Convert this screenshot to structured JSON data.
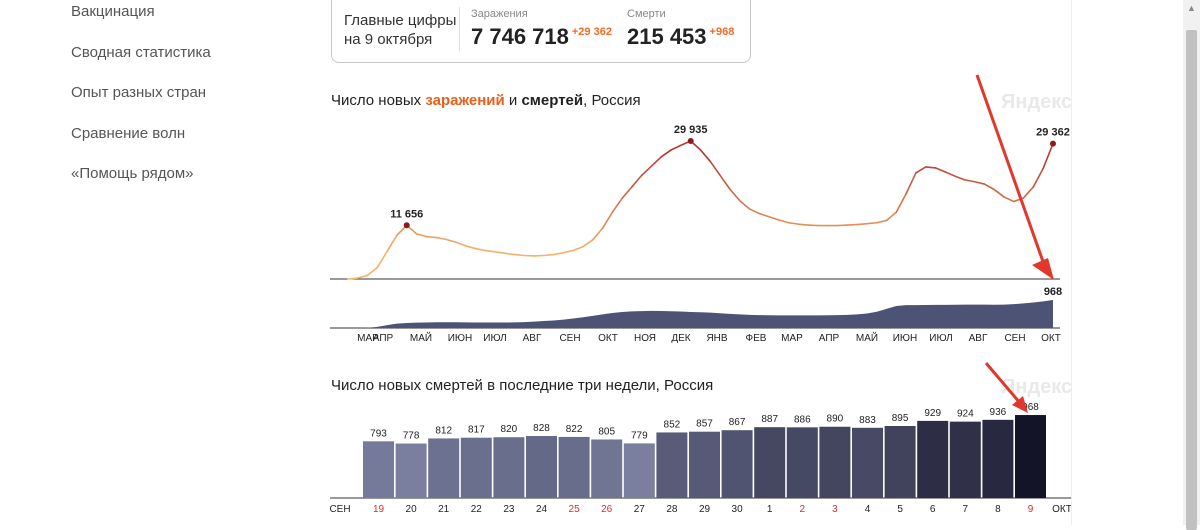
{
  "sidebar": {
    "items": [
      {
        "label": "Вакцинация"
      },
      {
        "label": "Сводная статистика"
      },
      {
        "label": "Опыт разных стран"
      },
      {
        "label": "Сравнение волн"
      },
      {
        "label": "«Помощь рядом»"
      }
    ]
  },
  "summary": {
    "label_line1": "Главные цифры",
    "label_line2": "на 9 октября",
    "infections_caption": "Заражения",
    "infections_total": "7 746 718",
    "infections_delta": "+29 362",
    "deaths_caption": "Смерти",
    "deaths_total": "215 453",
    "deaths_delta": "+968"
  },
  "chart1": {
    "title_prefix": "Число новых ",
    "title_infections": "заражений",
    "title_mid": " и ",
    "title_deaths": "смертей",
    "title_suffix": ", Россия",
    "watermark": "Яндекс"
  },
  "chart2": {
    "title": "Число новых смертей в последние три недели, Россия",
    "watermark": "Яндекс"
  },
  "colors": {
    "infections_low": "#f2b36a",
    "infections_high": "#b5312c",
    "deaths_area": "#4d5375",
    "highlight_red": "#d6302a",
    "annotation_arrow": "#e0382c"
  },
  "chart_data": [
    {
      "type": "line",
      "series": [
        {
          "name": "заражений",
          "values": [
            0,
            200,
            800,
            2500,
            6000,
            9500,
            11656,
            9800,
            9200,
            9000,
            8600,
            8000,
            7200,
            6600,
            6200,
            5900,
            5600,
            5300,
            5100,
            5000,
            5100,
            5300,
            5700,
            6200,
            7000,
            8500,
            11000,
            14500,
            17500,
            20000,
            22500,
            24500,
            26500,
            28000,
            29000,
            29935,
            28000,
            25500,
            22500,
            19500,
            17000,
            15200,
            14200,
            13500,
            12800,
            12200,
            11900,
            11700,
            11600,
            11600,
            11600,
            11700,
            11800,
            12000,
            12200,
            12700,
            14500,
            18500,
            23000,
            24300,
            24100,
            23200,
            22300,
            21500,
            21100,
            20600,
            19400,
            17800,
            16800,
            17600,
            20000,
            24000,
            29362
          ]
        }
      ],
      "annotations": [
        {
          "label": "11 656",
          "index": 6
        },
        {
          "label": "29 935",
          "index": 35
        },
        {
          "label": "29 362",
          "index": 72
        }
      ]
    },
    {
      "type": "area",
      "series": [
        {
          "name": "смертей",
          "values": [
            0,
            2,
            8,
            40,
            100,
            150,
            175,
            185,
            192,
            197,
            200,
            198,
            196,
            192,
            190,
            188,
            190,
            195,
            205,
            220,
            240,
            260,
            290,
            330,
            370,
            420,
            470,
            520,
            555,
            575,
            585,
            590,
            588,
            580,
            570,
            555,
            545,
            530,
            510,
            490,
            470,
            455,
            445,
            440,
            438,
            436,
            435,
            436,
            437,
            440,
            445,
            455,
            470,
            500,
            560,
            660,
            760,
            790,
            790,
            795,
            798,
            800,
            805,
            810,
            810,
            808,
            805,
            810,
            825,
            850,
            880,
            920,
            968
          ]
        }
      ],
      "x_tick_labels": [
        "МАР",
        "АПР",
        "МАЙ",
        "ИЮН",
        "ИЮЛ",
        "АВГ",
        "СЕН",
        "ОКТ",
        "НОЯ",
        "ДЕК",
        "ЯНВ",
        "ФЕВ",
        "МАР",
        "АПР",
        "МАЙ",
        "ИЮН",
        "ИЮЛ",
        "АВГ",
        "СЕН",
        "ОКТ"
      ],
      "annotations": [
        {
          "label": "968",
          "index": 72
        }
      ]
    },
    {
      "type": "bar",
      "categories": [
        "19",
        "20",
        "21",
        "22",
        "23",
        "24",
        "25",
        "26",
        "27",
        "28",
        "29",
        "30",
        "1",
        "2",
        "3",
        "4",
        "5",
        "6",
        "7",
        "8",
        "9"
      ],
      "weekend": [
        true,
        false,
        false,
        false,
        false,
        false,
        true,
        true,
        false,
        false,
        false,
        false,
        false,
        true,
        true,
        false,
        false,
        false,
        false,
        false,
        true
      ],
      "values": [
        793,
        778,
        812,
        817,
        820,
        828,
        822,
        805,
        779,
        852,
        857,
        867,
        887,
        886,
        890,
        883,
        895,
        929,
        924,
        936,
        968
      ],
      "axis_start_label": "СЕН",
      "axis_end_label": "ОКТ"
    }
  ]
}
